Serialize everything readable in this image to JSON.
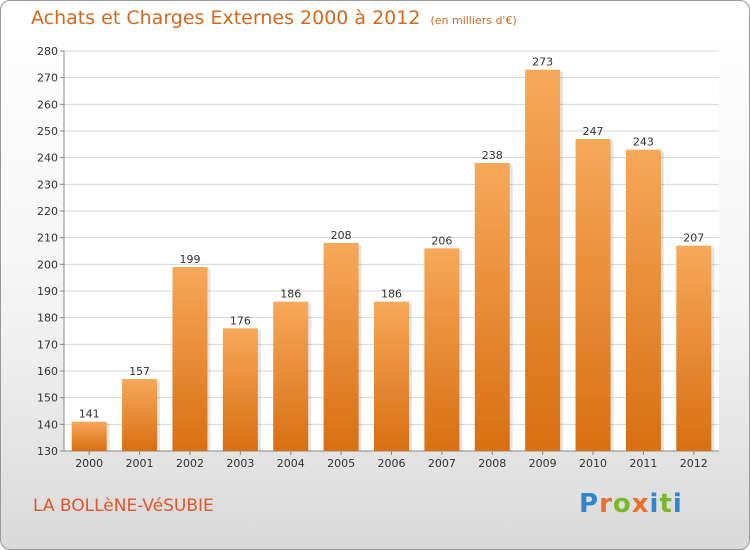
{
  "header": {
    "title": "Achats et Charges Externes 2000 à 2012",
    "subtitle": "(en milliers d'€)"
  },
  "footer": {
    "commune": "LA BOLLèNE-VéSUBIE",
    "logo": "Proxiti"
  },
  "colors": {
    "title": "#d2691e",
    "bar_top": "#f7a85a",
    "bar_bottom": "#d86f12",
    "grid": "#d6d6d6"
  },
  "chart_data": {
    "type": "bar",
    "title": "Achats et Charges Externes 2000 à 2012",
    "subtitle": "(en milliers d'€)",
    "categories": [
      "2000",
      "2001",
      "2002",
      "2003",
      "2004",
      "2005",
      "2006",
      "2007",
      "2008",
      "2009",
      "2010",
      "2011",
      "2012"
    ],
    "values": [
      141,
      157,
      199,
      176,
      186,
      208,
      186,
      206,
      238,
      273,
      247,
      243,
      207
    ],
    "ylim": [
      130,
      280
    ],
    "yticks": [
      130,
      140,
      150,
      160,
      170,
      180,
      190,
      200,
      210,
      220,
      230,
      240,
      250,
      260,
      270,
      280
    ],
    "grid": true,
    "data_labels": true
  }
}
